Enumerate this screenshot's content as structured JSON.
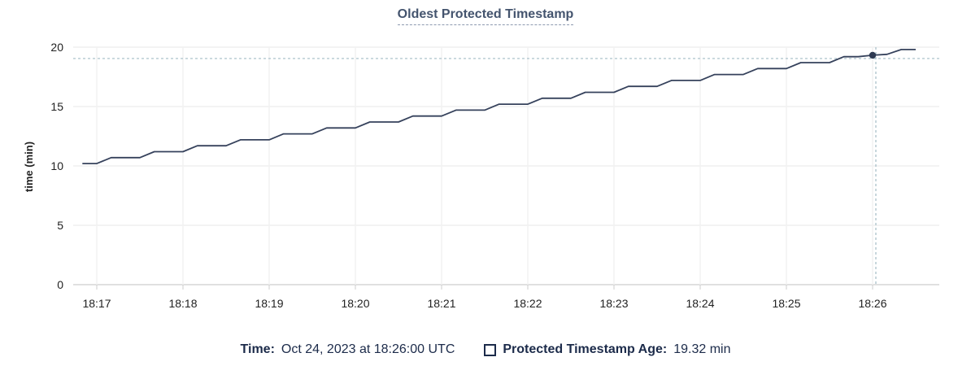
{
  "header": {
    "title": "Oldest Protected Timestamp"
  },
  "colors": {
    "title": "#44546e",
    "title_underline": "#8d9ab0",
    "line": "#36425c",
    "point": "#2e3a52",
    "crosshair": "#a3bcc6",
    "grid_vertical": "#f2f2f2",
    "grid_horizontal": "#efefef",
    "axis_line": "#e0e0e0",
    "tick": "#cccccc",
    "axis_text": "#222222",
    "legend_text": "#1c2b4a"
  },
  "chart_data": {
    "type": "line",
    "title": "Oldest Protected Timestamp",
    "xlabel": "",
    "ylabel": "time (min)",
    "ylim": [
      0,
      20
    ],
    "yticks": [
      0,
      5,
      10,
      15,
      20
    ],
    "xtick_labels": [
      "18:17",
      "18:18",
      "18:19",
      "18:20",
      "18:21",
      "18:22",
      "18:23",
      "18:24",
      "18:25",
      "18:26"
    ],
    "xtick_interval_seconds": 60,
    "grid": true,
    "legend_position": "bottom",
    "series": [
      {
        "name": "Protected Timestamp Age",
        "unit": "min",
        "start_offset_seconds": -10,
        "step_seconds": 10,
        "values": [
          10.2,
          10.2,
          10.7,
          10.7,
          10.7,
          11.2,
          11.2,
          11.2,
          11.7,
          11.7,
          11.7,
          12.2,
          12.2,
          12.2,
          12.7,
          12.7,
          12.7,
          13.2,
          13.2,
          13.2,
          13.7,
          13.7,
          13.7,
          14.2,
          14.2,
          14.2,
          14.7,
          14.7,
          14.7,
          15.2,
          15.2,
          15.2,
          15.7,
          15.7,
          15.7,
          16.2,
          16.2,
          16.2,
          16.7,
          16.7,
          16.7,
          17.2,
          17.2,
          17.2,
          17.7,
          17.7,
          17.7,
          18.2,
          18.2,
          18.2,
          18.7,
          18.7,
          18.7,
          19.2,
          19.2,
          19.32,
          19.4,
          19.8,
          19.8
        ]
      }
    ],
    "hover": {
      "time_label": "Oct 24, 2023 at 18:26:00 UTC",
      "offset_seconds": 540,
      "value": 19.32,
      "value_label": "19.32 min"
    }
  },
  "legend": {
    "time_label": "Time:",
    "time_value": "Oct 24, 2023 at 18:26:00 UTC",
    "series_label": "Protected Timestamp Age:",
    "series_value": "19.32 min",
    "checkbox_checked": false
  }
}
